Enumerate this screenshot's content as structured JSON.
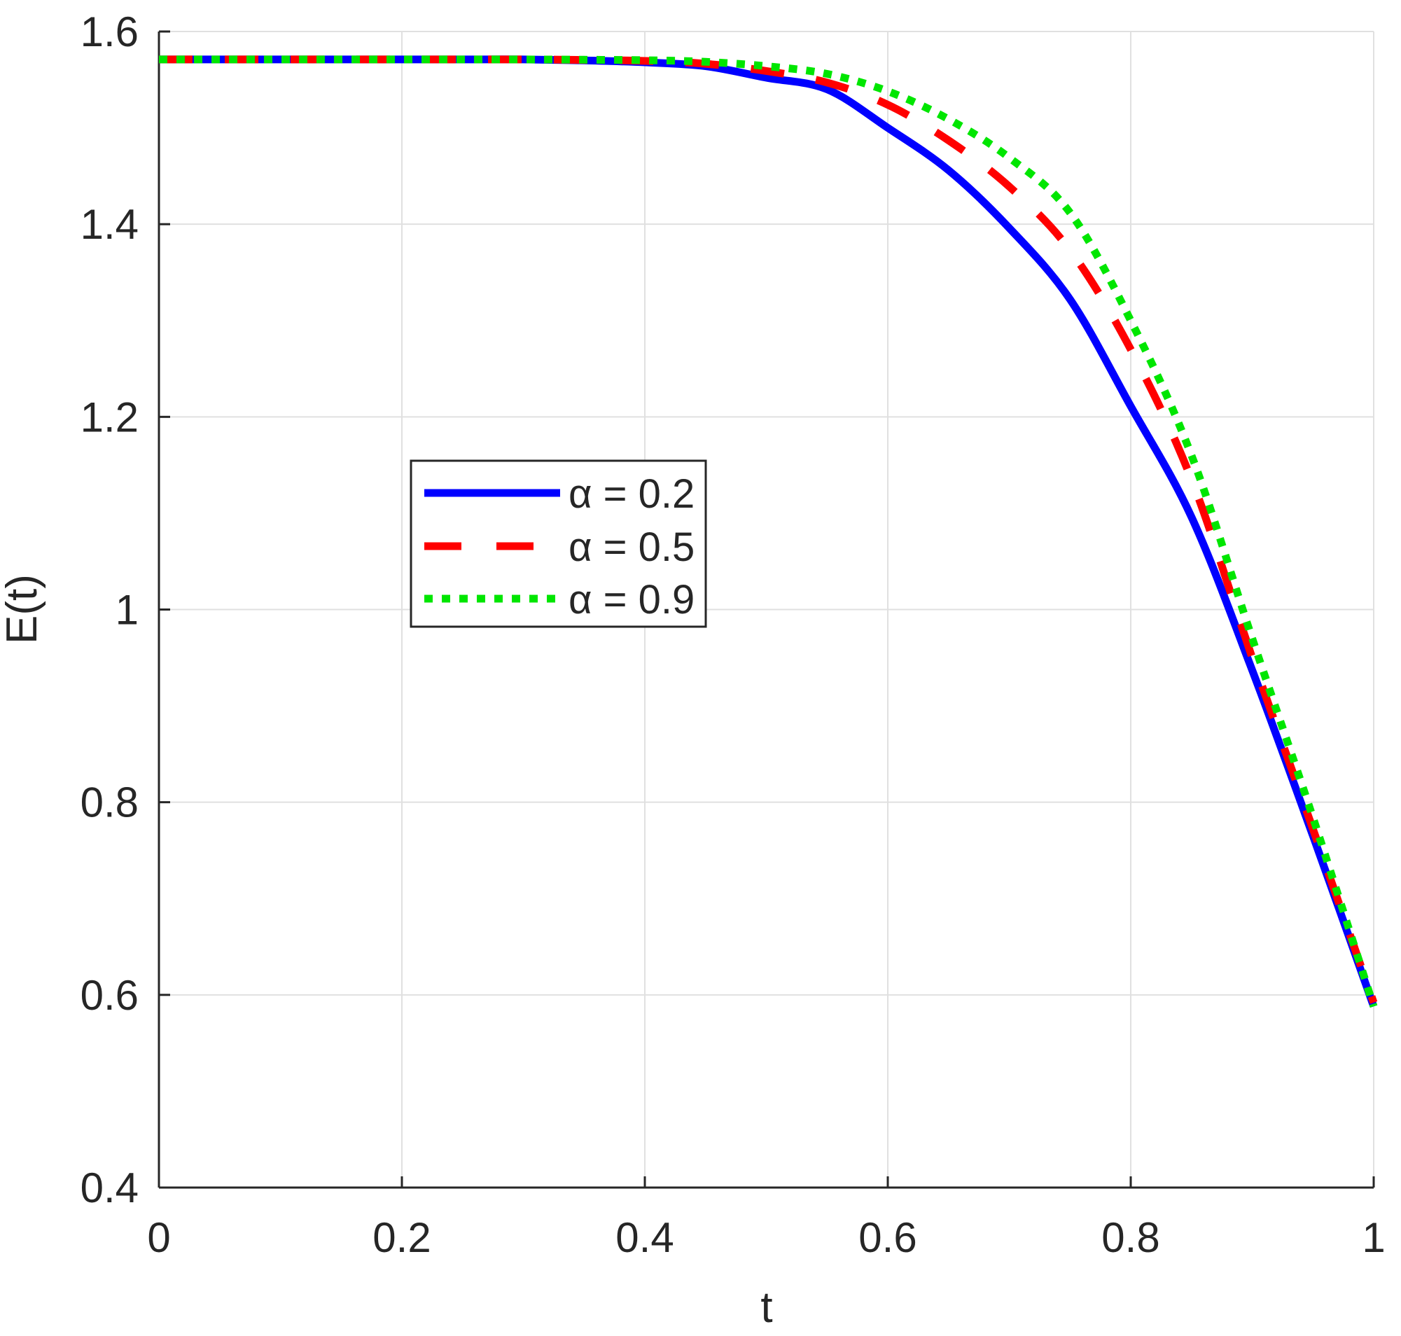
{
  "figure": {
    "background": "#ffffff",
    "axis_color": "#262626",
    "grid_color": "#e0e0e0",
    "legend_border_color": "#262626",
    "legend_background": "#ffffff"
  },
  "chart_data": {
    "type": "line",
    "title": "",
    "xlabel": "t",
    "ylabel": "E(t)",
    "xlim": [
      0,
      1
    ],
    "ylim": [
      0.4,
      1.6
    ],
    "grid": true,
    "legend_position": "inside-upper-left",
    "xticks": [
      0,
      0.2,
      0.4,
      0.6,
      0.8,
      1
    ],
    "xtick_labels": [
      "0",
      "0.2",
      "0.4",
      "0.6",
      "0.8",
      "1"
    ],
    "yticks": [
      0.4,
      0.6,
      0.8,
      1.0,
      1.2,
      1.4,
      1.6
    ],
    "ytick_labels": [
      "0.4",
      "0.6",
      "0.8",
      "1",
      "1.2",
      "1.4",
      "1.6"
    ],
    "x": [
      0,
      0.05,
      0.1,
      0.15,
      0.2,
      0.25,
      0.3,
      0.35,
      0.4,
      0.45,
      0.5,
      0.55,
      0.6,
      0.65,
      0.7,
      0.75,
      0.8,
      0.85,
      0.9,
      0.95,
      1.0
    ],
    "series": [
      {
        "name": "α = 0.2",
        "color": "#0000ff",
        "style": "solid",
        "values": [
          1.571,
          1.571,
          1.571,
          1.571,
          1.571,
          1.571,
          1.571,
          1.57,
          1.568,
          1.564,
          1.552,
          1.54,
          1.5,
          1.456,
          1.396,
          1.322,
          1.211,
          1.096,
          0.937,
          0.765,
          0.588
        ]
      },
      {
        "name": "α = 0.5",
        "color": "#ff0000",
        "style": "dashed",
        "values": [
          1.571,
          1.571,
          1.571,
          1.571,
          1.571,
          1.571,
          1.571,
          1.5705,
          1.5695,
          1.5665,
          1.559,
          1.547,
          1.524,
          1.487,
          1.439,
          1.373,
          1.27,
          1.135,
          0.95,
          0.772,
          0.592
        ]
      },
      {
        "name": "α = 0.9",
        "color": "#00e600",
        "style": "dotted",
        "values": [
          1.571,
          1.571,
          1.571,
          1.571,
          1.571,
          1.571,
          1.571,
          1.5707,
          1.5702,
          1.5685,
          1.564,
          1.556,
          1.538,
          1.509,
          1.469,
          1.412,
          1.3,
          1.16,
          0.97,
          0.784,
          0.588
        ]
      }
    ]
  }
}
